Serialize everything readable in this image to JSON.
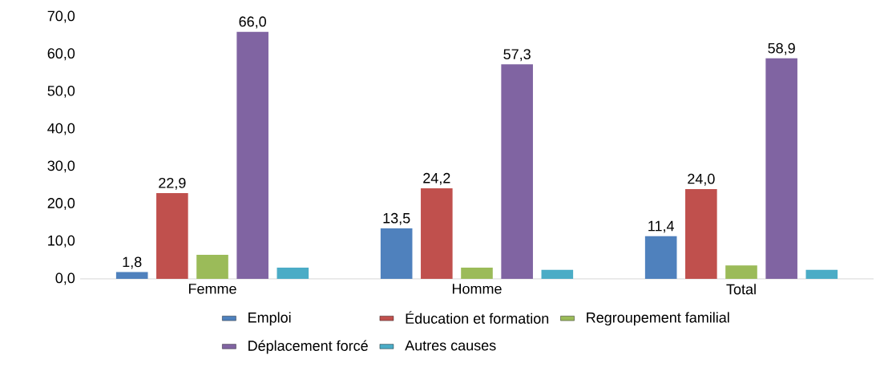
{
  "chart_data": {
    "type": "bar",
    "categories": [
      "Femme",
      "Homme",
      "Total"
    ],
    "series": [
      {
        "name": "Emploi",
        "color": "#4f81bd",
        "values": [
          1.8,
          13.5,
          11.4
        ],
        "value_labels": [
          "1,8",
          "13,5",
          "11,4"
        ]
      },
      {
        "name": "Éducation et formation",
        "color": "#c0504d",
        "values": [
          22.9,
          24.2,
          24.0
        ],
        "value_labels": [
          "22,9",
          "24,2",
          "24,0"
        ]
      },
      {
        "name": "Regroupement familial",
        "color": "#9bbb59",
        "values": [
          6.4,
          3.0,
          3.6
        ],
        "value_labels": [
          null,
          null,
          null
        ]
      },
      {
        "name": "Déplacement forcé",
        "color": "#8064a2",
        "values": [
          66.0,
          57.3,
          58.9
        ],
        "value_labels": [
          "66,0",
          "57,3",
          "58,9"
        ]
      },
      {
        "name": "Autres causes",
        "color": "#4bacc6",
        "values": [
          3.0,
          2.4,
          2.4
        ],
        "value_labels": [
          null,
          null,
          null
        ]
      }
    ],
    "ylim": [
      0,
      70
    ],
    "yticks": [
      {
        "value": 0,
        "label": "0,0"
      },
      {
        "value": 10,
        "label": "10,0"
      },
      {
        "value": 20,
        "label": "20,0"
      },
      {
        "value": 30,
        "label": "30,0"
      },
      {
        "value": 40,
        "label": "40,0"
      },
      {
        "value": 50,
        "label": "50,0"
      },
      {
        "value": 60,
        "label": "60,0"
      },
      {
        "value": 70,
        "label": "70,0"
      }
    ],
    "grid": false,
    "legend": "bottom"
  }
}
